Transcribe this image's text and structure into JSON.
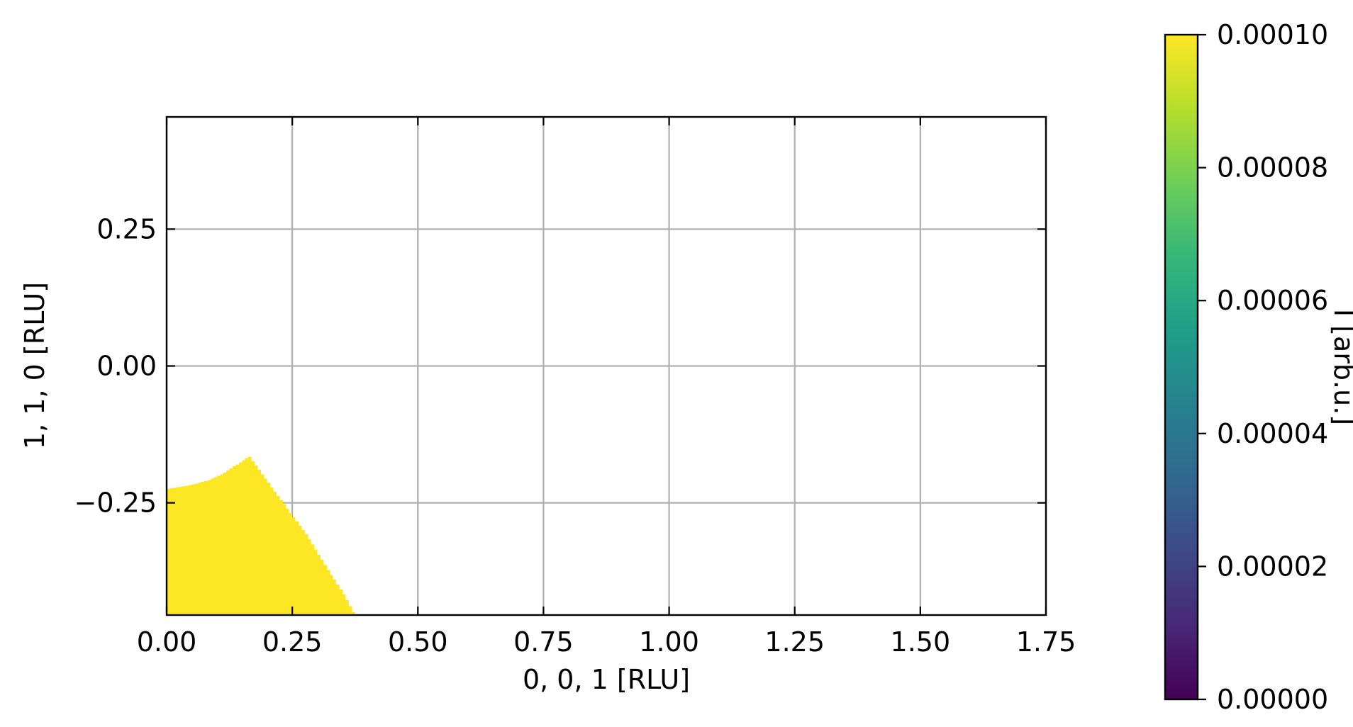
{
  "chart_data": {
    "type": "heatmap",
    "title": "",
    "xlabel": "0, 0, 1 [RLU]",
    "ylabel": "1, 1, 0 [RLU]",
    "xlim": [
      0.0,
      1.75
    ],
    "ylim": [
      -0.455,
      0.455
    ],
    "x_ticks": [
      0.0,
      0.25,
      0.5,
      0.75,
      1.0,
      1.25,
      1.5,
      1.75
    ],
    "x_tick_labels": [
      "0.00",
      "0.25",
      "0.50",
      "0.75",
      "1.00",
      "1.25",
      "1.50",
      "1.75"
    ],
    "y_ticks": [
      0.25,
      0.0,
      -0.25
    ],
    "y_tick_labels": [
      "0.25",
      "0.00",
      "−0.25"
    ],
    "grid": true,
    "colormap": "viridis",
    "colorbar": {
      "label": "I [arb.u.]",
      "range": [
        0.0,
        0.0001
      ],
      "ticks": [
        0.0,
        2e-05,
        4e-05,
        6e-05,
        8e-05,
        0.0001
      ],
      "tick_labels": [
        "0.00000",
        "0.00002",
        "0.00004",
        "0.00006",
        "0.00008",
        "0.00010"
      ]
    },
    "filled_region": {
      "value": 0.0001,
      "color": "#fde725",
      "boundary": [
        {
          "x": 0.0,
          "y": -0.225
        },
        {
          "x": 0.044,
          "y": -0.218
        },
        {
          "x": 0.08,
          "y": -0.21
        },
        {
          "x": 0.11,
          "y": -0.198
        },
        {
          "x": 0.14,
          "y": -0.18
        },
        {
          "x": 0.165,
          "y": -0.165
        },
        {
          "x": 0.2,
          "y": -0.21
        },
        {
          "x": 0.24,
          "y": -0.26
        },
        {
          "x": 0.28,
          "y": -0.31
        },
        {
          "x": 0.32,
          "y": -0.37
        },
        {
          "x": 0.355,
          "y": -0.42
        },
        {
          "x": 0.375,
          "y": -0.455
        }
      ]
    },
    "colors": {
      "grid": "#b0b0b0",
      "fill": "#fde725",
      "viridis": [
        "#440154",
        "#482878",
        "#3e4989",
        "#31688e",
        "#26828e",
        "#1f9e89",
        "#35b779",
        "#6ece58",
        "#b5de2b",
        "#fde725"
      ]
    }
  }
}
